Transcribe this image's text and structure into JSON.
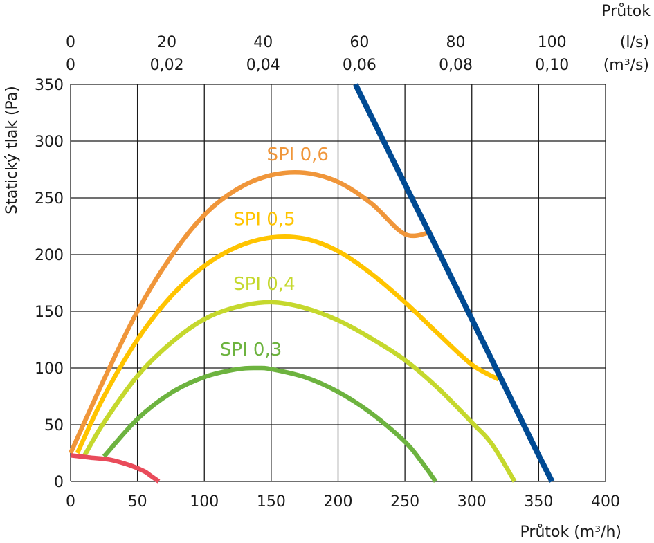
{
  "chart_data": {
    "type": "line",
    "xlabel": "Průtok (m³/h)",
    "ylabel": "Statický tlak (Pa)",
    "xlim": [
      0,
      400
    ],
    "ylim": [
      0,
      350
    ],
    "xticks": [
      0,
      50,
      100,
      150,
      200,
      250,
      300,
      350,
      400
    ],
    "yticks": [
      0,
      50,
      100,
      150,
      200,
      250,
      300,
      350
    ],
    "grid": true,
    "top_axis": {
      "title": "Průtok",
      "rows": [
        {
          "unit": "(l/s)",
          "ticks": [
            {
              "label": "0",
              "value": 0
            },
            {
              "label": "20",
              "value": 20
            },
            {
              "label": "40",
              "value": 40
            },
            {
              "label": "60",
              "value": 60
            },
            {
              "label": "80",
              "value": 80
            },
            {
              "label": "100",
              "value": 100
            }
          ]
        },
        {
          "unit": "(m³/s)",
          "ticks": [
            {
              "label": "0",
              "value": 0
            },
            {
              "label": "0,02",
              "value": 0.02
            },
            {
              "label": "0,04",
              "value": 0.04
            },
            {
              "label": "0,06",
              "value": 0.06
            },
            {
              "label": "0,08",
              "value": 0.08
            },
            {
              "label": "0,10",
              "value": 0.1
            }
          ]
        }
      ]
    },
    "series": [
      {
        "name": "SPI 0,6",
        "color": "#f0963a",
        "x": [
          0,
          25,
          50,
          75,
          100,
          125,
          150,
          175,
          200,
          225,
          250,
          270
        ],
        "y": [
          25,
          90,
          150,
          198,
          235,
          258,
          270,
          272,
          264,
          245,
          218,
          220
        ]
      },
      {
        "name": "SPI 0,5",
        "color": "#ffc400",
        "x": [
          5,
          25,
          50,
          75,
          100,
          125,
          150,
          175,
          200,
          225,
          250,
          275,
          300,
          320
        ],
        "y": [
          25,
          75,
          125,
          163,
          190,
          207,
          215,
          214,
          203,
          183,
          158,
          130,
          103,
          90
        ]
      },
      {
        "name": "SPI 0,4",
        "color": "#c5d82d",
        "x": [
          10,
          25,
          50,
          75,
          100,
          125,
          150,
          175,
          200,
          225,
          250,
          275,
          300,
          315,
          332
        ],
        "y": [
          22,
          52,
          93,
          122,
          143,
          154,
          158,
          153,
          142,
          126,
          107,
          82,
          52,
          33,
          0
        ]
      },
      {
        "name": "SPI 0,3",
        "color": "#6db33f",
        "x": [
          25,
          50,
          75,
          100,
          125,
          140,
          150,
          175,
          200,
          225,
          250,
          262,
          273
        ],
        "y": [
          22,
          55,
          78,
          92,
          99,
          100,
          99,
          92,
          79,
          60,
          35,
          18,
          0
        ]
      },
      {
        "color": "#e94b5a",
        "x": [
          0,
          15,
          30,
          45,
          55,
          60,
          66
        ],
        "y": [
          23,
          21,
          19,
          14,
          9,
          5,
          0
        ]
      },
      {
        "color": "#004a93",
        "x": [
          213,
          250,
          275,
          300,
          325,
          350,
          360
        ],
        "y": [
          350,
          262,
          203,
          143,
          83,
          23,
          0
        ]
      }
    ]
  }
}
